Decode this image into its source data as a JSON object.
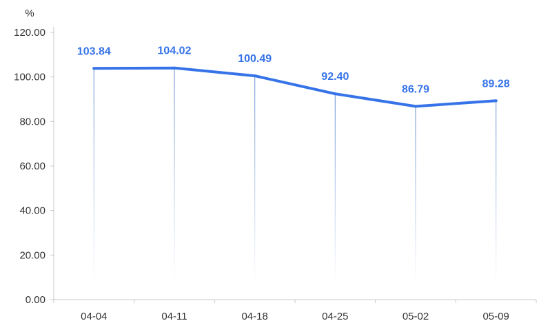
{
  "colors": {
    "line": "#3673e8",
    "axis": "#c8c8c8",
    "text": "#333333",
    "drop_line_top": "#6e96d2"
  },
  "chart_data": {
    "type": "line",
    "ylabel": "%",
    "categories": [
      "04-04",
      "04-11",
      "04-18",
      "04-25",
      "05-02",
      "05-09"
    ],
    "series": [
      {
        "values": [
          103.84,
          104.02,
          100.49,
          92.4,
          86.79,
          89.28
        ]
      }
    ],
    "data_labels": [
      "103.84",
      "104.02",
      "100.49",
      "92.40",
      "86.79",
      "89.28"
    ],
    "ylim": [
      0,
      120
    ],
    "y_ticks": [
      0,
      20,
      40,
      60,
      80,
      100,
      120
    ],
    "y_tick_labels": [
      "0.00",
      "20.00",
      "40.00",
      "60.00",
      "80.00",
      "100.00",
      "120.00"
    ],
    "grid": false,
    "legend": "none"
  }
}
